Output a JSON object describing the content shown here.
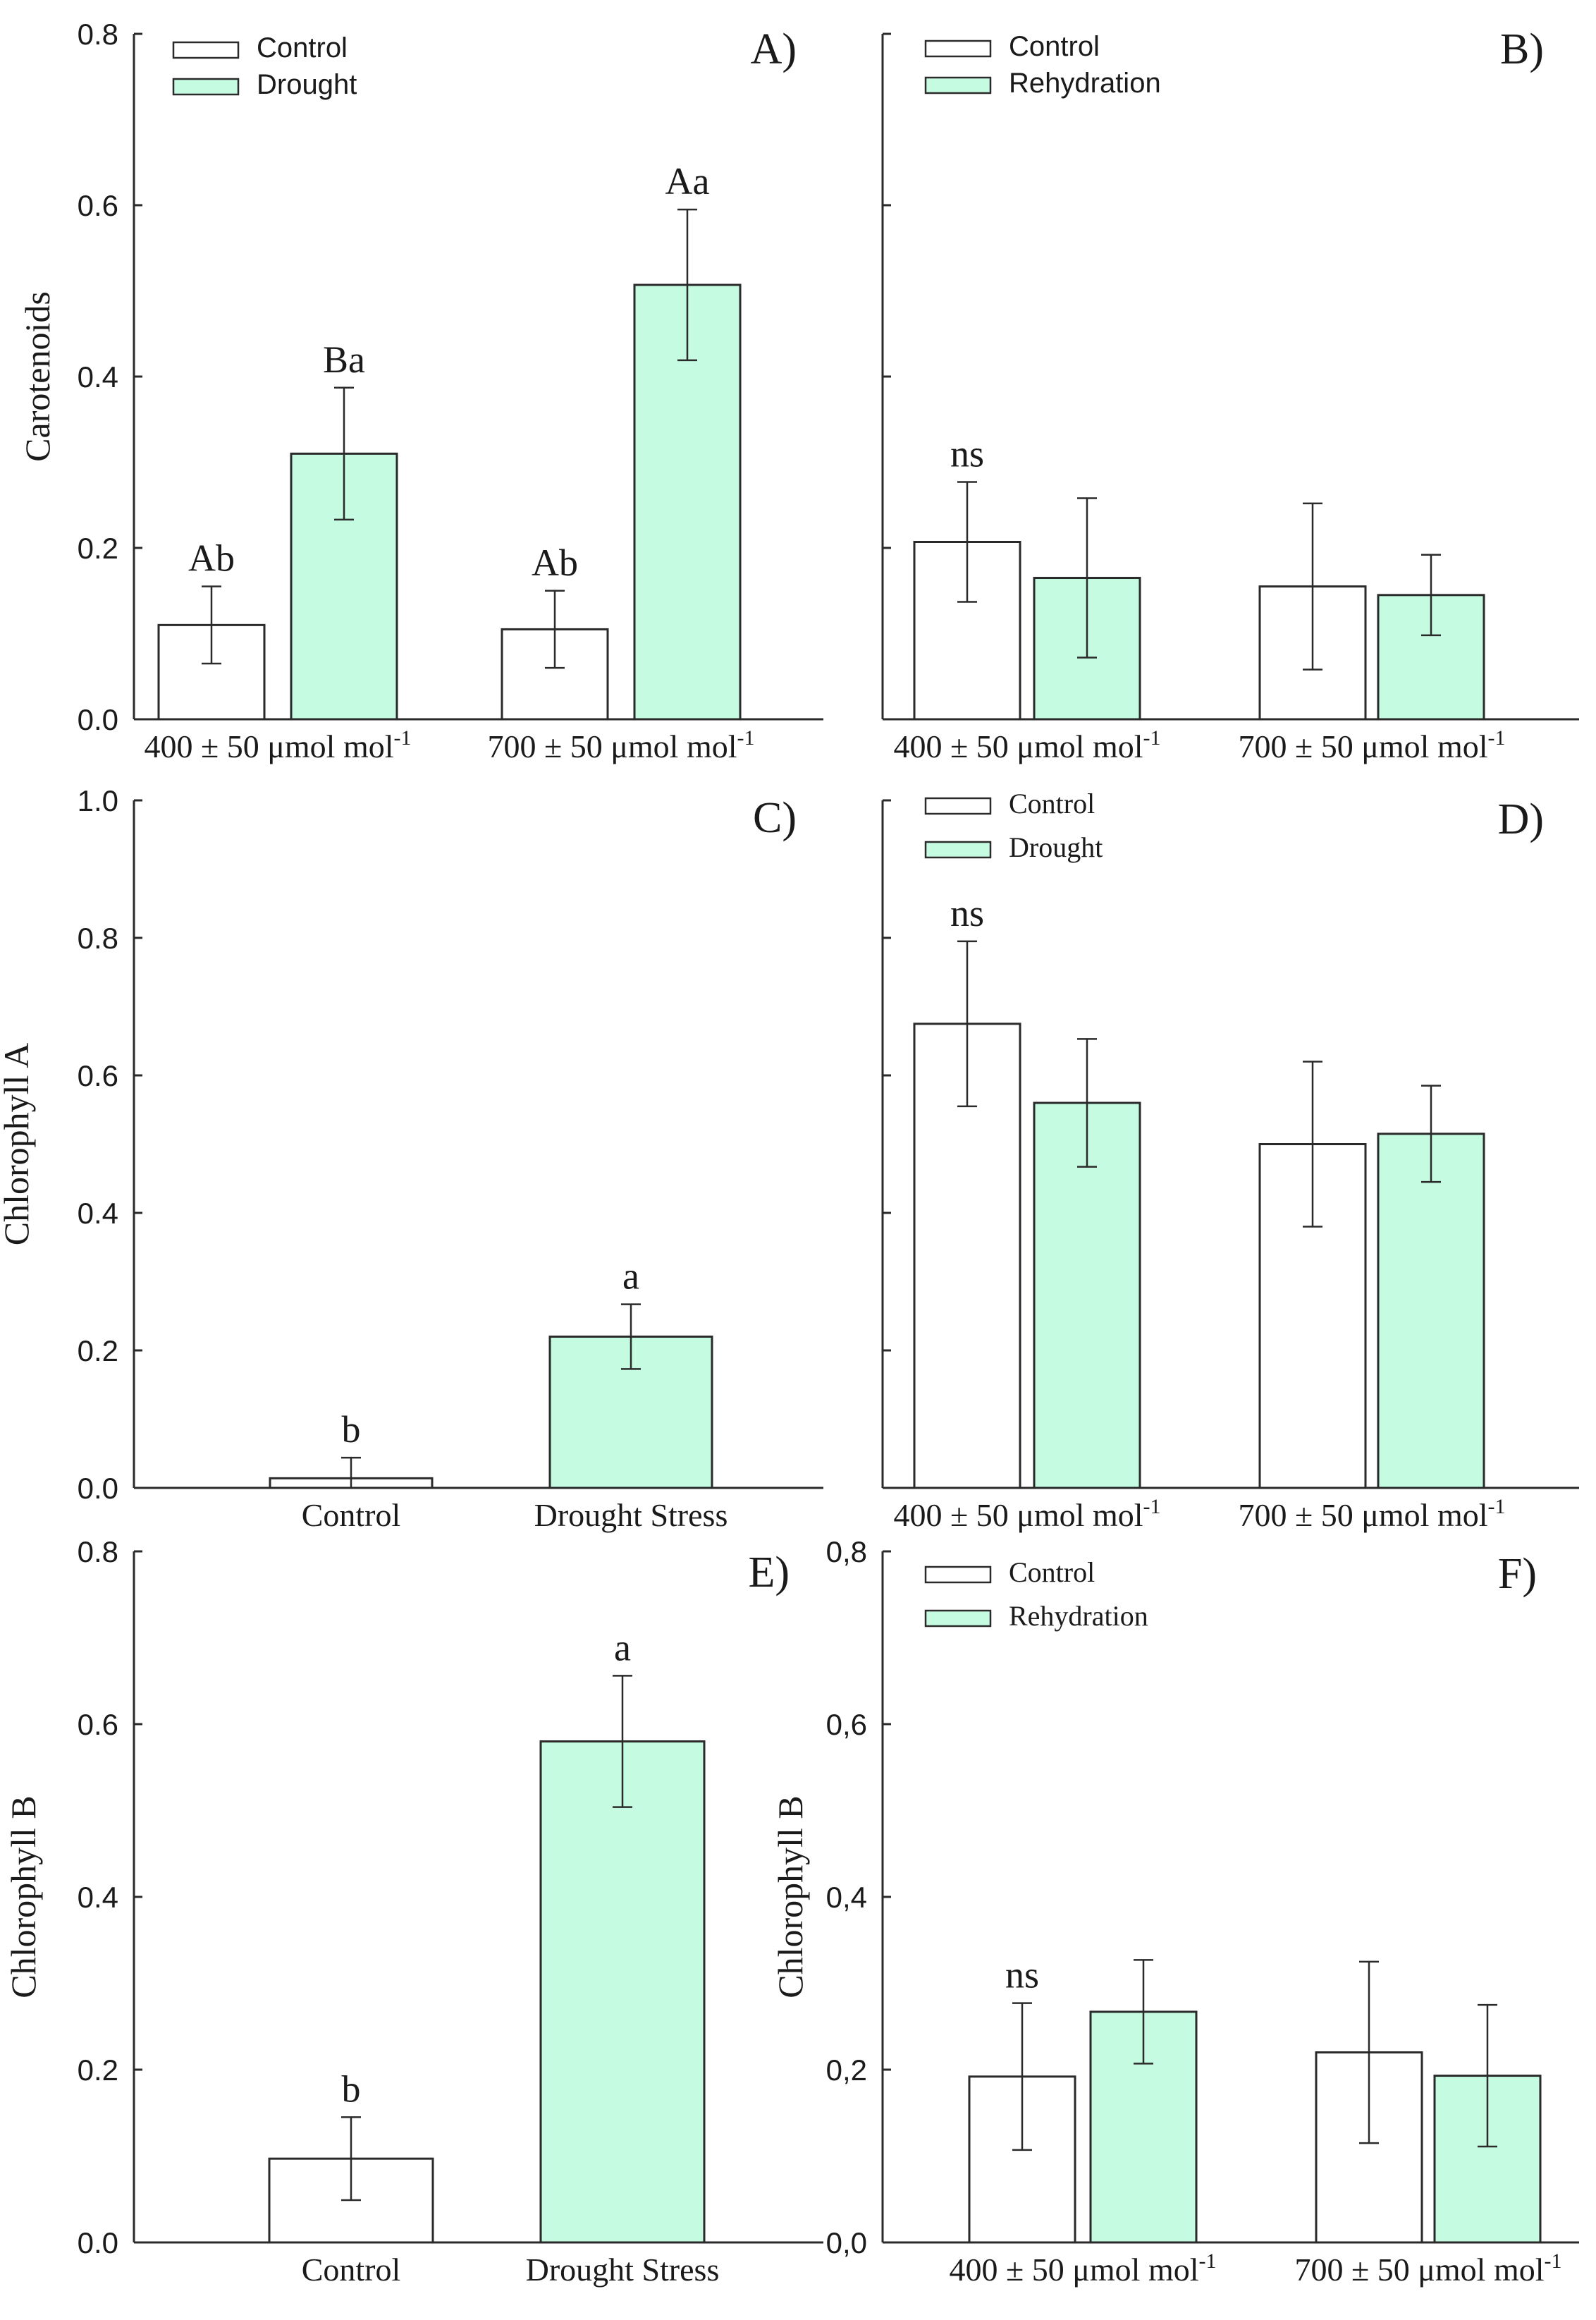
{
  "colors": {
    "control_fill": "#ffffff",
    "treatment_fill": "#c4fbe1",
    "stroke": "#2a2a2a",
    "background": "#ffffff"
  },
  "chart_data": [
    {
      "panel": "A)",
      "type": "bar",
      "ylabel": "Carotenoids",
      "ylim": [
        0,
        0.8
      ],
      "yticks": [
        "0.0",
        "0.2",
        "0.4",
        "0.6",
        "0.8"
      ],
      "categories": [
        "400 ± 50 μmol mol-1",
        "700 ± 50 μmol mol-1"
      ],
      "category_parts": [
        [
          "400 ± 50 μmol mol",
          "-1"
        ],
        [
          "700 ± 50 μmol mol",
          "-1"
        ]
      ],
      "legend": {
        "position": "top-left",
        "entries": [
          "Control",
          "Drought"
        ]
      },
      "series": [
        {
          "name": "Control",
          "values": [
            0.11,
            0.105
          ],
          "errors": [
            0.045,
            0.045
          ],
          "labels": [
            "Ab",
            "Ab"
          ]
        },
        {
          "name": "Drought",
          "values": [
            0.31,
            0.507
          ],
          "errors": [
            0.077,
            0.088
          ],
          "labels": [
            "Ba",
            "Aa"
          ]
        }
      ]
    },
    {
      "panel": "B)",
      "type": "bar",
      "ylabel": "",
      "ylim": [
        0,
        0.8
      ],
      "yticks": [],
      "categories": [
        "400 ± 50 μmol mol-1",
        "700 ± 50 μmol mol-1"
      ],
      "category_parts": [
        [
          "400 ± 50 μmol mol",
          "-1"
        ],
        [
          "700 ± 50 μmol mol",
          "-1"
        ]
      ],
      "legend": {
        "position": "top-left",
        "entries": [
          "Control",
          "Rehydration"
        ]
      },
      "series": [
        {
          "name": "Control",
          "values": [
            0.207,
            0.155
          ],
          "errors": [
            0.07,
            0.097
          ],
          "labels": [
            "ns",
            ""
          ]
        },
        {
          "name": "Rehydration",
          "values": [
            0.165,
            0.145
          ],
          "errors": [
            0.093,
            0.047
          ],
          "labels": [
            "",
            ""
          ]
        }
      ]
    },
    {
      "panel": "C)",
      "type": "bar",
      "ylabel": "Chlorophyll A",
      "ylim": [
        0,
        1.0
      ],
      "yticks": [
        "0.0",
        "0.2",
        "0.4",
        "0.6",
        "0.8",
        "1.0"
      ],
      "categories": [
        "Control",
        "Drought Stress"
      ],
      "legend": null,
      "series": [
        {
          "name": "",
          "values": [
            0.014,
            0.22
          ],
          "errors": [
            0.03,
            0.047
          ],
          "labels": [
            "b",
            "a"
          ]
        }
      ]
    },
    {
      "panel": "D)",
      "type": "bar",
      "ylabel": "",
      "ylim": [
        0,
        1.0
      ],
      "yticks": [],
      "categories": [
        "400 ± 50 μmol mol-1",
        "700 ± 50 μmol mol-1"
      ],
      "category_parts": [
        [
          "400 ± 50 μmol mol",
          "-1"
        ],
        [
          "700 ± 50 μmol mol",
          "-1"
        ]
      ],
      "legend": {
        "position": "top-left",
        "entries": [
          "Control",
          "Drought"
        ]
      },
      "series": [
        {
          "name": "Control",
          "values": [
            0.675,
            0.5
          ],
          "errors": [
            0.12,
            0.12
          ],
          "labels": [
            "ns",
            ""
          ]
        },
        {
          "name": "Drought",
          "values": [
            0.56,
            0.515
          ],
          "errors": [
            0.093,
            0.07
          ],
          "labels": [
            "",
            ""
          ]
        }
      ]
    },
    {
      "panel": "E)",
      "type": "bar",
      "ylabel": "Chlorophyll B",
      "ylim": [
        0,
        0.8
      ],
      "yticks": [
        "0.0",
        "0.2",
        "0.4",
        "0.6",
        "0.8"
      ],
      "categories": [
        "Control",
        "Drought Stress"
      ],
      "legend": null,
      "series": [
        {
          "name": "",
          "values": [
            0.097,
            0.58
          ],
          "errors": [
            0.048,
            0.076
          ],
          "labels": [
            "b",
            "a"
          ]
        }
      ]
    },
    {
      "panel": "F)",
      "type": "bar",
      "ylabel": "Chlorophyll B",
      "ylim": [
        0,
        0.8
      ],
      "yticks": [
        "0,0",
        "0,2",
        "0,4",
        "0,6",
        "0,8"
      ],
      "categories": [
        "400 ± 50 μmol mol-1",
        "700 ± 50 μmol mol-1"
      ],
      "category_parts": [
        [
          "400 ± 50 μmol mol",
          "-1"
        ],
        [
          "700 ± 50 μmol mol",
          "-1"
        ]
      ],
      "legend": {
        "position": "top-left",
        "entries": [
          "Control",
          "Rehydration"
        ]
      },
      "series": [
        {
          "name": "Control",
          "values": [
            0.192,
            0.22
          ],
          "errors": [
            0.085,
            0.105
          ],
          "labels": [
            "ns",
            ""
          ]
        },
        {
          "name": "Rehydration",
          "values": [
            0.267,
            0.193
          ],
          "errors": [
            0.06,
            0.082
          ],
          "labels": [
            "",
            ""
          ]
        }
      ]
    }
  ]
}
